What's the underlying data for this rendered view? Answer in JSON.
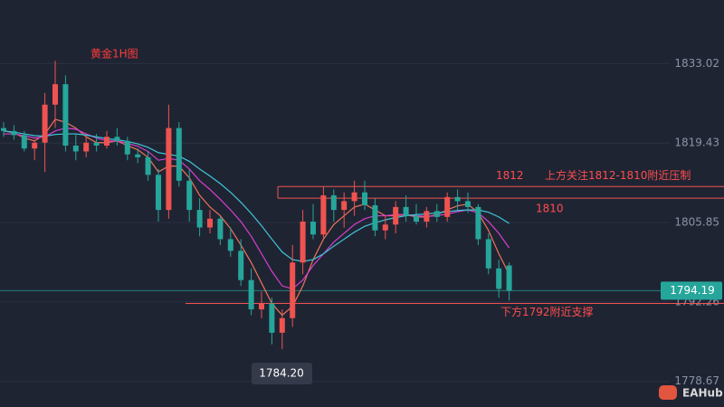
{
  "chart_data": {
    "type": "candlestick",
    "title": "黄金1H图",
    "brand": "EAHub",
    "up_color": "#ef5350",
    "down_color": "#26a69a",
    "candles": {
      "open": [
        1822,
        1821.5,
        1820.8,
        1818.5,
        1819.5,
        1826,
        1829.5,
        1819,
        1818,
        1819.5,
        1819,
        1820.5,
        1819.8,
        1817.5,
        1817,
        1814,
        1808,
        1822,
        1813,
        1808,
        1805,
        1806.5,
        1803,
        1801,
        1796,
        1791,
        1792,
        1787,
        1789.5,
        1799,
        1806,
        1803.8,
        1810.5,
        1808,
        1809.5,
        1811,
        1808.8,
        1804.5,
        1805.5,
        1808.5,
        1807,
        1806,
        1807.8,
        1806.8,
        1810.2,
        1809.5,
        1808.5,
        1803,
        1798,
        1798.5
      ],
      "high": [
        1823,
        1822.5,
        1821.5,
        1820,
        1828,
        1833.5,
        1831,
        1821,
        1820.5,
        1821,
        1821.5,
        1822,
        1820.5,
        1818.5,
        1818,
        1815,
        1826,
        1823,
        1815,
        1810,
        1808,
        1807,
        1805,
        1803,
        1798,
        1794,
        1793,
        1791,
        1802,
        1808,
        1809,
        1812,
        1811.5,
        1811,
        1813,
        1813,
        1810,
        1807,
        1809.5,
        1810.5,
        1809,
        1808.5,
        1809,
        1811,
        1811.5,
        1811,
        1809,
        1804,
        1799.5,
        1799
      ],
      "low": [
        1820.5,
        1820,
        1818,
        1816.5,
        1814.5,
        1822,
        1818,
        1816.5,
        1817,
        1818,
        1818.5,
        1819,
        1816.5,
        1816,
        1813,
        1806,
        1806.5,
        1812,
        1806,
        1803.5,
        1804,
        1802,
        1800,
        1795,
        1790,
        1789.5,
        1785,
        1784.2,
        1788,
        1797,
        1803,
        1803,
        1806,
        1805,
        1807,
        1808,
        1803.5,
        1803,
        1804,
        1806,
        1805.5,
        1805,
        1806,
        1806,
        1808,
        1807.5,
        1802,
        1797,
        1793,
        1792.5
      ],
      "close": [
        1821.5,
        1820.8,
        1818.5,
        1819.5,
        1826,
        1829.5,
        1819,
        1818,
        1819.5,
        1819,
        1820.5,
        1819.8,
        1817.5,
        1817,
        1814,
        1808,
        1822,
        1813,
        1808,
        1805,
        1806.5,
        1803,
        1801,
        1796,
        1791,
        1792,
        1787,
        1789.5,
        1799,
        1806,
        1803.8,
        1810.5,
        1808,
        1809.5,
        1811,
        1808.8,
        1804.5,
        1805.5,
        1808.5,
        1807,
        1806,
        1807.8,
        1806.8,
        1810.2,
        1809.5,
        1808.5,
        1803,
        1798,
        1794.5,
        1794.19
      ]
    },
    "series": [
      {
        "color": "#f0735a",
        "values": [
          1821.5,
          1821.2,
          1820.3,
          1819.8,
          1821,
          1823.5,
          1823,
          1822,
          1820.5,
          1819.5,
          1819.5,
          1819.8,
          1819,
          1818.3,
          1817,
          1814.5,
          1815.5,
          1815.5,
          1813.5,
          1810.5,
          1808.5,
          1807,
          1804.8,
          1802,
          1799,
          1795.5,
          1792,
          1790,
          1791.5,
          1795,
          1799.5,
          1803,
          1805.5,
          1807,
          1808.5,
          1809,
          1808,
          1807,
          1807,
          1807.2,
          1806.8,
          1806.8,
          1807.2,
          1808,
          1808.7,
          1809,
          1807.5,
          1804.5,
          1800.5,
          1797
        ]
      },
      {
        "color": "#d63fd0",
        "values": [
          1821,
          1821,
          1820.7,
          1820.3,
          1820.5,
          1821.5,
          1822,
          1821.8,
          1821,
          1820.3,
          1819.8,
          1819.8,
          1819.4,
          1818.9,
          1818,
          1816.5,
          1816.8,
          1816.5,
          1815,
          1813,
          1811.5,
          1809.8,
          1808,
          1806,
          1803.5,
          1800.5,
          1797.5,
          1795,
          1794.5,
          1796,
          1798.5,
          1800.5,
          1802.5,
          1804,
          1805.5,
          1806.5,
          1807,
          1807,
          1807.2,
          1807.2,
          1807,
          1806.9,
          1807,
          1807.3,
          1807.7,
          1808,
          1807.5,
          1806,
          1804,
          1801.5
        ]
      },
      {
        "color": "#3fc6d8",
        "values": [
          1821.5,
          1821.3,
          1821,
          1820.7,
          1820.6,
          1820.9,
          1821,
          1821,
          1820.8,
          1820.5,
          1820.2,
          1820,
          1819.7,
          1819.3,
          1818.7,
          1817.8,
          1817.5,
          1817.2,
          1816.3,
          1815,
          1813.8,
          1812.5,
          1811,
          1809.3,
          1807.4,
          1805.3,
          1803,
          1800.8,
          1799.5,
          1799.2,
          1799.5,
          1800.5,
          1801.8,
          1803,
          1804.2,
          1805.2,
          1805.8,
          1806.3,
          1806.7,
          1807,
          1807.2,
          1807.3,
          1807.5,
          1807.7,
          1807.9,
          1808,
          1808,
          1807.6,
          1806.8,
          1805.7
        ]
      }
    ],
    "ylim": [
      1774.3,
      1843.9
    ],
    "yticks": [
      1778.67,
      1792.26,
      1805.85,
      1819.43,
      1833.02
    ],
    "grid": true,
    "resistance_zone": {
      "high": 1812,
      "low": 1810,
      "note": "上方关注1812-1810附近压制"
    },
    "support": {
      "level": 1792,
      "note": "下方1792附近支撑"
    },
    "low_marker": {
      "value": 1784.2,
      "label": "1784.20"
    },
    "last_price": 1794.19
  }
}
